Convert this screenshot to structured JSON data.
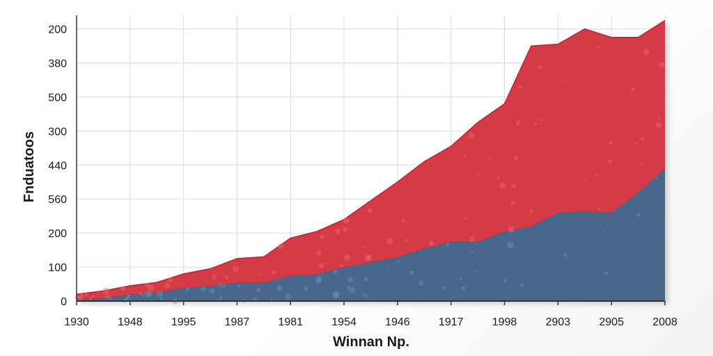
{
  "chart_data": {
    "type": "area",
    "stacked": true,
    "title": "",
    "xlabel": "Winnan Np.",
    "ylabel": "Fnduatoos",
    "x_tick_labels": [
      "1930",
      "1948",
      "1995",
      "1987",
      "1981",
      "1954",
      "1946",
      "1917",
      "1998",
      "2903",
      "2905",
      "2008"
    ],
    "y_tick_labels": [
      "0",
      "100",
      "200",
      "560",
      "440",
      "300",
      "500",
      "380",
      "200"
    ],
    "y_tick_positions": [
      0,
      1,
      2,
      3,
      4,
      5,
      6,
      7,
      8
    ],
    "x": [
      0,
      0.5,
      1,
      1.5,
      2,
      2.5,
      3,
      3.5,
      4,
      4.5,
      5,
      5.5,
      6,
      6.5,
      7,
      7.5,
      8,
      8.5,
      9,
      9.5,
      10,
      10.5,
      11
    ],
    "series": [
      {
        "color": "#46688a",
        "values": [
          0.05,
          0.1,
          0.2,
          0.25,
          0.4,
          0.45,
          0.55,
          0.55,
          0.75,
          0.8,
          1.0,
          1.15,
          1.3,
          1.55,
          1.75,
          1.75,
          2.05,
          2.2,
          2.6,
          2.65,
          2.6,
          3.2,
          3.9
        ]
      },
      {
        "color": "#d43a47",
        "values": [
          0.15,
          0.2,
          0.25,
          0.3,
          0.4,
          0.5,
          0.7,
          0.75,
          1.1,
          1.25,
          1.4,
          1.8,
          2.2,
          2.55,
          2.8,
          3.5,
          3.75,
          5.3,
          4.95,
          5.35,
          5.15,
          4.55,
          4.35
        ]
      }
    ],
    "ylim": [
      0,
      8.4
    ],
    "grid": true,
    "legend": false
  }
}
